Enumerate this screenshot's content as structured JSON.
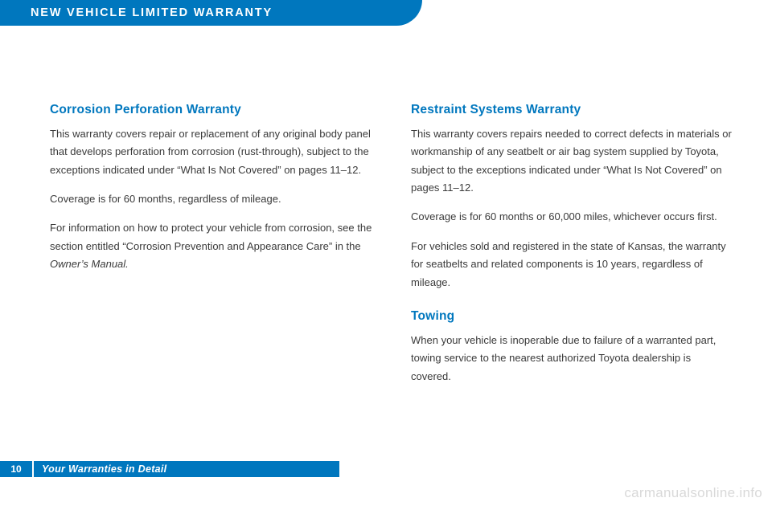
{
  "header": {
    "title": "New Vehicle Limited Warranty"
  },
  "left": {
    "section1": {
      "title": "Corrosion Perforation Warranty",
      "p1": "This warranty covers repair or replacement of any original body panel that develops perforation from corrosion (rust-through), subject to the exceptions indicated under “What Is Not Covered” on pages 11–12.",
      "p2": "Coverage is for 60 months, regardless of mileage.",
      "p3a": "For information on how to protect your vehicle from corrosion, see the section entitled “Corrosion Prevention and Appearance Care” in the ",
      "p3b": "Owner’s Manual.",
      "p3c": ""
    }
  },
  "right": {
    "section1": {
      "title": "Restraint Systems Warranty",
      "p1": "This warranty covers repairs needed to correct defects in materials or workmanship of any seatbelt or air bag system supplied by Toyota, subject to the exceptions indicated under “What Is Not Covered” on pages 11–12.",
      "p2": "Coverage is for 60 months or 60,000 miles, whichever occurs first.",
      "p3": "For vehicles sold and registered in the state of Kansas, the warranty for seatbelts and related components is 10 years, regardless of mileage."
    },
    "section2": {
      "title": "Towing",
      "p1": "When your vehicle is inoperable due to failure of a warranted part, towing service to the nearest authorized Toyota dealership is covered."
    }
  },
  "footer": {
    "page": "10",
    "text": "Your Warranties in Detail"
  },
  "watermark": "carmanualsonline.info"
}
